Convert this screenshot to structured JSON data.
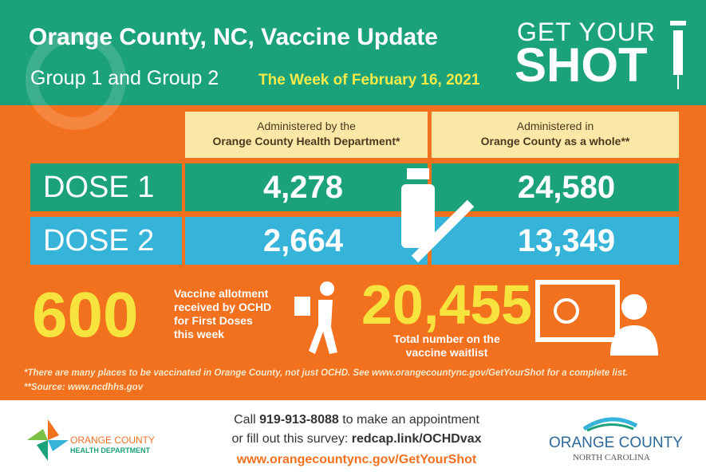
{
  "header": {
    "title": "Orange County, NC, Vaccine Update",
    "subtitle": "Group 1 and Group 2",
    "week": "The Week of February 16, 2021",
    "logo": {
      "line1": "GET YOUR",
      "line2": "SHOT"
    }
  },
  "table": {
    "columns": [
      {
        "line1": "Administered by the",
        "line2": "Orange County Health Department*"
      },
      {
        "line1": "Administered in",
        "line2": "Orange County as a whole**"
      }
    ],
    "rows": [
      {
        "label": "DOSE 1",
        "values": [
          "4,278",
          "24,580"
        ]
      },
      {
        "label": "DOSE 2",
        "values": [
          "2,664",
          "13,349"
        ]
      }
    ]
  },
  "allotment": {
    "value": "600",
    "caption": [
      "Vaccine allotment",
      "received by OCHD",
      "for First Doses",
      "this week"
    ]
  },
  "waitlist": {
    "value": "20,455",
    "caption": [
      "Total number on the",
      "vaccine waitlist"
    ]
  },
  "footnotes": [
    "*There are many places to be vaccinated in Orange County, not just OCHD. See www.orangecountync.gov/GetYourShot for a complete list.",
    "**Source: www.ncdhhs.gov"
  ],
  "footer": {
    "call": {
      "prefix": "Call",
      "phone": "919-913-8088",
      "suffix": "to make an appointment"
    },
    "survey": {
      "prefix": "or fill out this survey:",
      "link": "redcap.link/OCHDvax"
    },
    "website": "www.orangecountync.gov/GetYourShot",
    "left_logo": {
      "line1": "ORANGE COUNTY",
      "line2": "HEALTH DEPARTMENT"
    },
    "right_logo": {
      "line1": "ORANGE COUNTY",
      "line2": "NORTH CAROLINA"
    }
  }
}
